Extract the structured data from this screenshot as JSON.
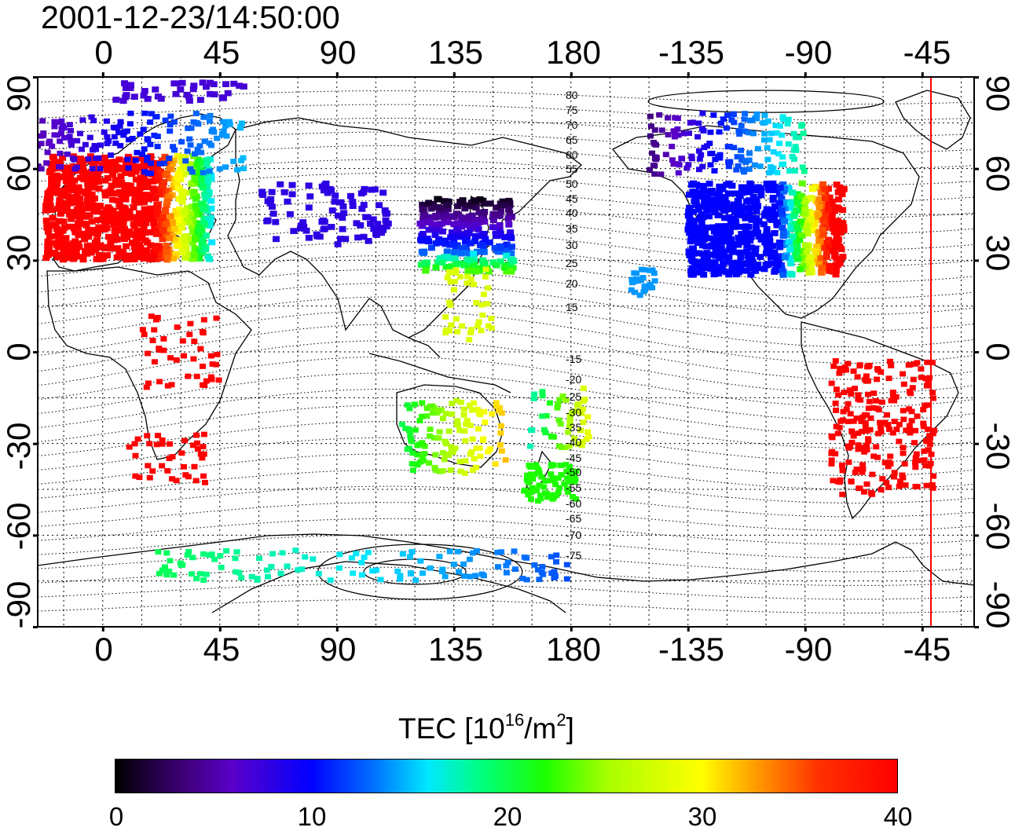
{
  "title": "2001-12-23/14:50:00",
  "top_lon_ticks": [
    "0",
    "45",
    "90",
    "135",
    "180",
    "-135",
    "-90",
    "-45"
  ],
  "bottom_lon_ticks": [
    "0",
    "45",
    "90",
    "135",
    "180",
    "-135",
    "-90",
    "-45"
  ],
  "left_lat_ticks": [
    "90",
    "60",
    "30",
    "0",
    "-30",
    "-60",
    "-90"
  ],
  "right_lat_ticks": [
    "90",
    "60",
    "30",
    "0",
    "-30",
    "-60",
    "-90"
  ],
  "contour_labels": [
    "80",
    "75",
    "70",
    "65",
    "60",
    "55",
    "50",
    "45",
    "40",
    "35",
    "30",
    "25",
    "20",
    "15",
    "-15",
    "-20",
    "-25",
    "-30",
    "-35",
    "-40",
    "-45",
    "-50",
    "-55",
    "-60",
    "-65",
    "-70",
    "-75"
  ],
  "colorbar": {
    "title_main": "TEC  [10",
    "title_exp1": "16",
    "title_mid": "/m",
    "title_exp2": "2",
    "title_end": "]",
    "min": 0,
    "max": 40,
    "tick_labels": [
      "0",
      "10",
      "20",
      "30",
      "40"
    ],
    "colors": [
      "#000000",
      "#5a00c8",
      "#0000ff",
      "#00e8ff",
      "#00ff7a",
      "#1cff00",
      "#ffff00",
      "#ff9a00",
      "#ff0000"
    ]
  },
  "terminator_longitude": -45,
  "terminator_color": "#ff0000",
  "map": {
    "lon_range": [
      -25,
      335
    ],
    "lat_range": [
      -90,
      90
    ],
    "grid_spacing_deg": 15
  }
}
